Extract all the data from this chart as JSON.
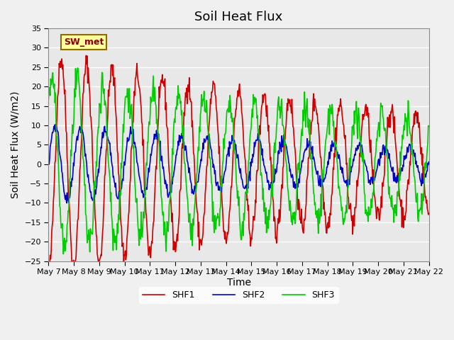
{
  "title": "Soil Heat Flux",
  "ylabel": "Soil Heat Flux (W/m2)",
  "xlabel": "Time",
  "ylim": [
    -25,
    35
  ],
  "yticks": [
    -25,
    -20,
    -15,
    -10,
    -5,
    0,
    5,
    10,
    15,
    20,
    25,
    30,
    35
  ],
  "line_colors": {
    "SHF1": "#cc0000",
    "SHF2": "#0000cc",
    "SHF3": "#00cc00"
  },
  "legend_label": "SW_met",
  "x_tick_labels": [
    "May 7",
    "May 8",
    "May 9",
    "May 10",
    "May 11",
    "May 12",
    "May 13",
    "May 14",
    "May 15",
    "May 16",
    "May 17",
    "May 18",
    "May 19",
    "May 20",
    "May 21",
    "May 22"
  ],
  "n_days": 15,
  "points_per_day": 48
}
